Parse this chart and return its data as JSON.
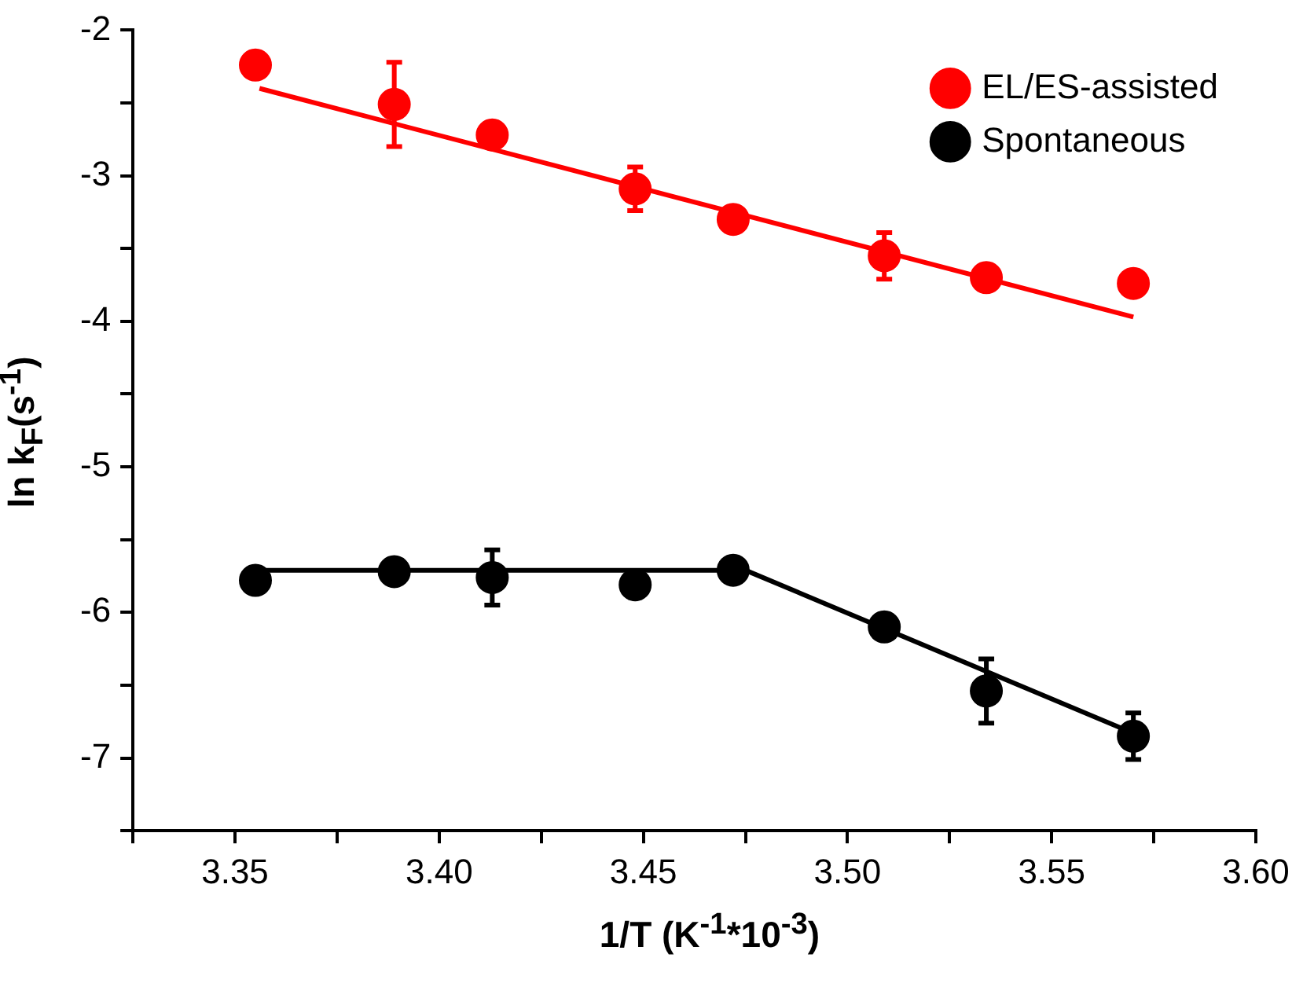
{
  "chart_data": {
    "type": "scatter",
    "xlabel": "1/T (K$^{-1}$*10$^{-3}$)",
    "ylabel": "ln k$_{F}$(s$^{-1}$)",
    "xlim": [
      3.325,
      3.6
    ],
    "xticks": [
      {
        "value": 3.325,
        "label": null
      },
      {
        "value": 3.35,
        "label": "3.35"
      },
      {
        "value": 3.375,
        "label": null
      },
      {
        "value": 3.4,
        "label": "3.40"
      },
      {
        "value": 3.425,
        "label": null
      },
      {
        "value": 3.45,
        "label": "3.45"
      },
      {
        "value": 3.475,
        "label": null
      },
      {
        "value": 3.5,
        "label": "3.50"
      },
      {
        "value": 3.525,
        "label": null
      },
      {
        "value": 3.55,
        "label": "3.55"
      },
      {
        "value": 3.575,
        "label": null
      },
      {
        "value": 3.6,
        "label": "3.60"
      }
    ],
    "ylim": [
      -7.5,
      -2
    ],
    "yticks": [
      {
        "value": -7.5,
        "label": null
      },
      -7,
      {
        "value": -6.5,
        "label": null
      },
      -6,
      {
        "value": -5.5,
        "label": null
      },
      -5,
      {
        "value": -4.5,
        "label": null
      },
      -4,
      {
        "value": -3.5,
        "label": null
      },
      -3,
      {
        "value": -2.5,
        "label": null
      },
      -2
    ],
    "grid": false,
    "legend": "top right",
    "marker": "circle",
    "series": [
      {
        "name": "EL/ES-assisted",
        "color": "#ff0000",
        "x": [
          3.355,
          3.389,
          3.413,
          3.448,
          3.472,
          3.509,
          3.534,
          3.57
        ],
        "values": [
          -2.24,
          -2.51,
          -2.72,
          -3.09,
          -3.3,
          -3.55,
          -3.7,
          -3.74
        ],
        "errors": [
          null,
          0.29,
          null,
          0.15,
          null,
          0.16,
          null,
          null
        ]
      },
      {
        "name": "Spontaneous",
        "color": "#000000",
        "x": [
          3.355,
          3.389,
          3.413,
          3.448,
          3.472,
          3.509,
          3.534,
          3.57
        ],
        "values": [
          -5.78,
          -5.72,
          -5.76,
          -5.81,
          -5.71,
          -6.1,
          -6.54,
          -6.85
        ],
        "errors": [
          null,
          null,
          0.19,
          null,
          null,
          null,
          0.22,
          0.16
        ]
      },
      {
        "type": "line",
        "color": "#ff0000",
        "x": [
          3.356,
          3.57
        ],
        "values": [
          -2.4,
          -3.97
        ],
        "marker": "none"
      },
      {
        "type": "line",
        "color": "#000000",
        "x": [
          3.355,
          3.475,
          3.57
        ],
        "values": [
          -5.71,
          -5.71,
          -6.83
        ],
        "marker": "none"
      }
    ]
  }
}
